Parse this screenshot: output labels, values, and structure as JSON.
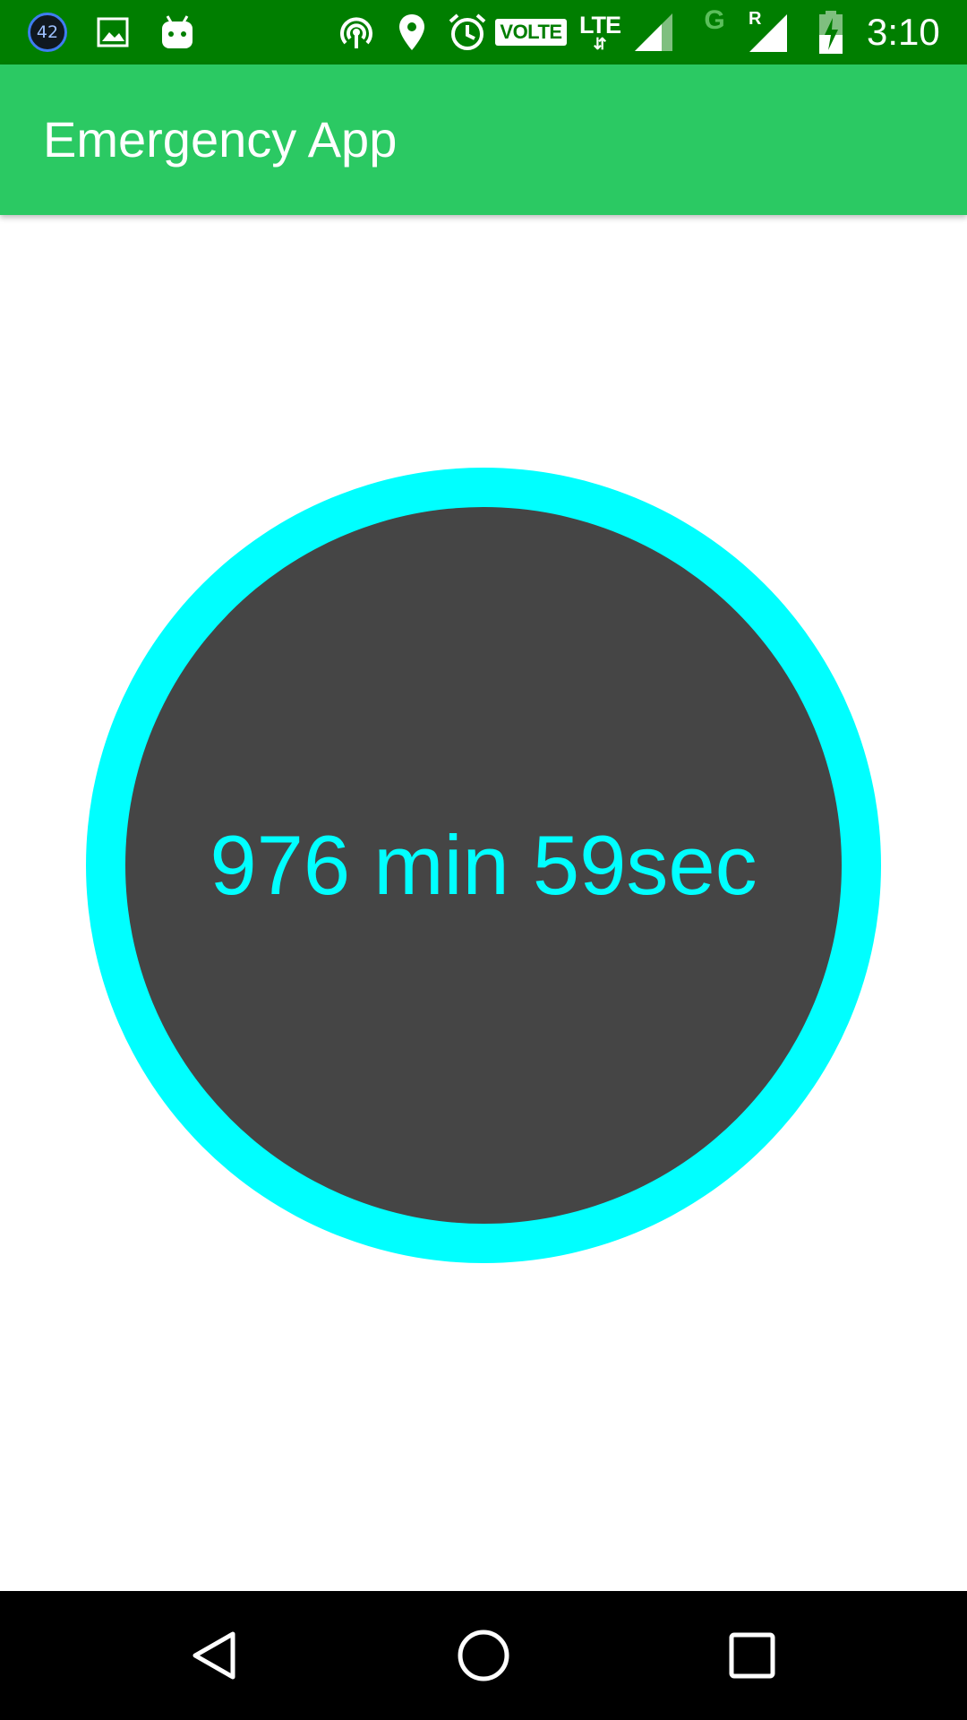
{
  "status_bar": {
    "notification_badge": "42",
    "icons": [
      "image-icon",
      "android-icon",
      "hotspot-icon",
      "location-icon",
      "alarm-icon",
      "volte-icon",
      "lte-icon",
      "signal-icon",
      "g-network-icon",
      "roaming-signal-icon",
      "battery-charging-icon"
    ],
    "volte_label": "VOLTE",
    "lte_label": "LTE",
    "lte_arrows": "⇵",
    "g_label": "G",
    "roaming_label": "R",
    "time": "3:10",
    "background_color": "#007e00"
  },
  "app_bar": {
    "title": "Emergency App",
    "background_color": "#2bc963"
  },
  "timer": {
    "text": "976 min 59sec",
    "ring_color": "#00ffff",
    "fill_color": "#454545",
    "text_color": "#00ffff"
  },
  "nav_bar": {
    "buttons": [
      "back-icon",
      "home-icon",
      "recents-icon"
    ]
  }
}
